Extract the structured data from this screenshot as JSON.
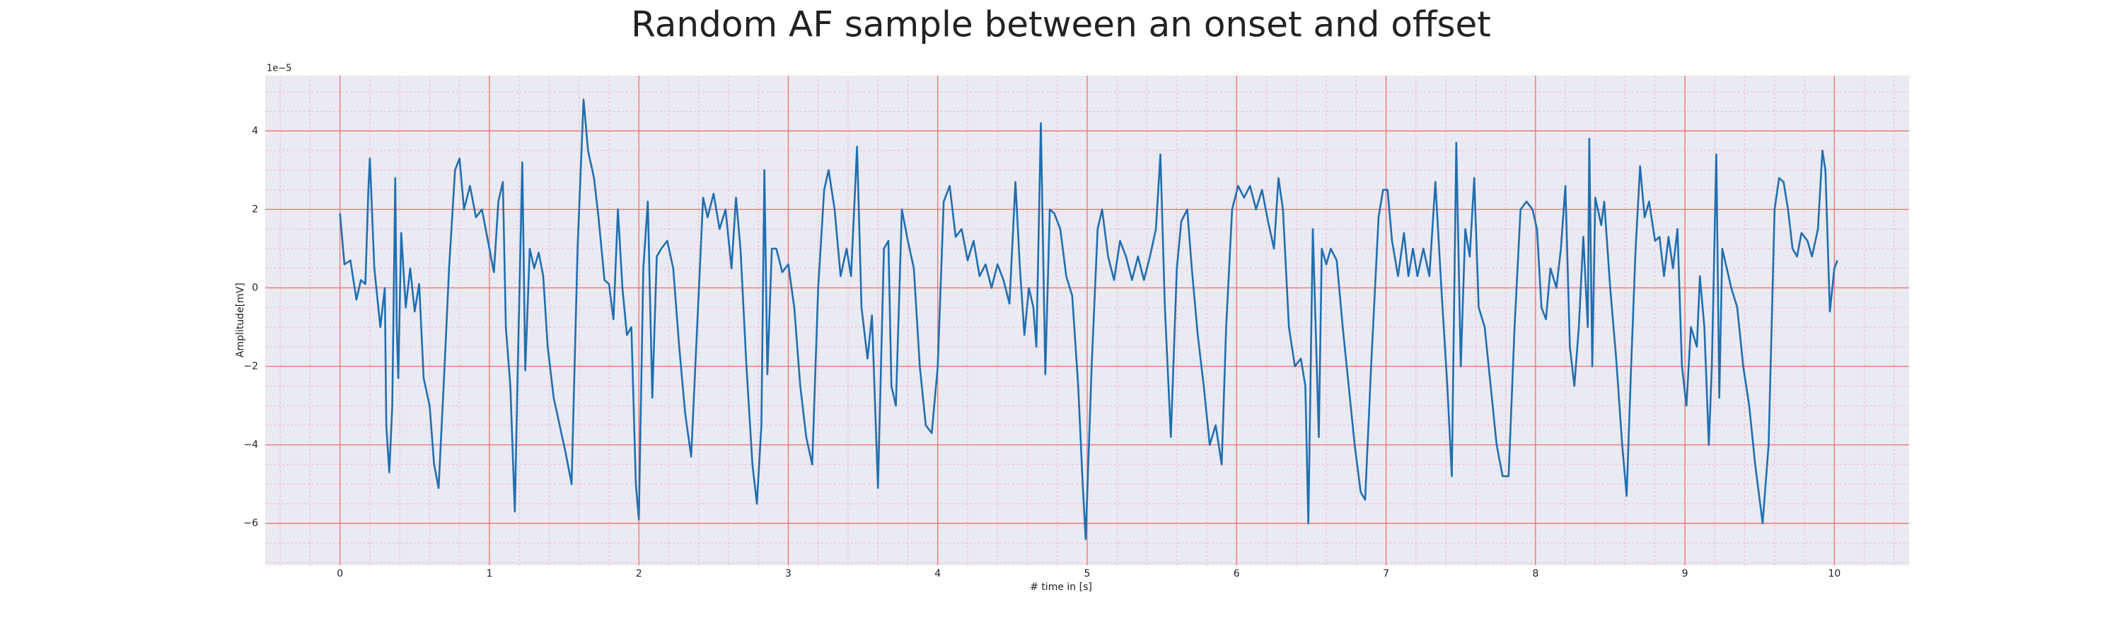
{
  "chart_data": {
    "type": "line",
    "title": "Random AF sample between an onset and offset",
    "xlabel": "# time in [s]",
    "ylabel": "Amplitude[mV]",
    "y_offset_label": "1e−5",
    "color": "#1f6fb0",
    "grid": true,
    "minor_grid": true,
    "xlim": [
      -0.5,
      10.5
    ],
    "xticks": [
      0,
      1,
      2,
      3,
      4,
      5,
      6,
      7,
      8,
      9,
      10
    ],
    "ylim": [
      -7.07,
      5.41
    ],
    "yticks": [
      -6,
      -4,
      -2,
      0,
      2,
      4
    ],
    "x": [
      0.0,
      0.03,
      0.07,
      0.11,
      0.14,
      0.17,
      0.19,
      0.2,
      0.23,
      0.27,
      0.3,
      0.31,
      0.33,
      0.35,
      0.37,
      0.38,
      0.39,
      0.41,
      0.44,
      0.47,
      0.5,
      0.53,
      0.56,
      0.6,
      0.63,
      0.66,
      0.7,
      0.73,
      0.77,
      0.8,
      0.83,
      0.87,
      0.91,
      0.95,
      1.0,
      1.03,
      1.06,
      1.09,
      1.11,
      1.14,
      1.17,
      1.19,
      1.22,
      1.24,
      1.27,
      1.3,
      1.33,
      1.36,
      1.39,
      1.43,
      1.47,
      1.51,
      1.55,
      1.59,
      1.63,
      1.66,
      1.7,
      1.73,
      1.77,
      1.8,
      1.83,
      1.86,
      1.89,
      1.92,
      1.95,
      1.98,
      2.0,
      2.03,
      2.06,
      2.09,
      2.12,
      2.15,
      2.19,
      2.23,
      2.27,
      2.31,
      2.35,
      2.39,
      2.43,
      2.46,
      2.5,
      2.54,
      2.58,
      2.62,
      2.65,
      2.68,
      2.72,
      2.76,
      2.79,
      2.82,
      2.84,
      2.86,
      2.89,
      2.92,
      2.96,
      3.0,
      3.04,
      3.08,
      3.12,
      3.16,
      3.2,
      3.24,
      3.27,
      3.31,
      3.35,
      3.39,
      3.42,
      3.46,
      3.49,
      3.53,
      3.56,
      3.6,
      3.64,
      3.67,
      3.69,
      3.72,
      3.76,
      3.8,
      3.84,
      3.88,
      3.92,
      3.96,
      4.0,
      4.04,
      4.08,
      4.12,
      4.16,
      4.2,
      4.24,
      4.28,
      4.32,
      4.36,
      4.4,
      4.44,
      4.48,
      4.52,
      4.55,
      4.58,
      4.61,
      4.64,
      4.66,
      4.69,
      4.72,
      4.75,
      4.78,
      4.82,
      4.86,
      4.9,
      4.94,
      4.97,
      4.99,
      5.03,
      5.07,
      5.1,
      5.14,
      5.18,
      5.22,
      5.26,
      5.3,
      5.34,
      5.38,
      5.42,
      5.46,
      5.49,
      5.52,
      5.56,
      5.6,
      5.63,
      5.67,
      5.7,
      5.74,
      5.78,
      5.82,
      5.86,
      5.9,
      5.93,
      5.97,
      6.01,
      6.05,
      6.09,
      6.13,
      6.17,
      6.21,
      6.25,
      6.28,
      6.31,
      6.35,
      6.39,
      6.43,
      6.46,
      6.48,
      6.51,
      6.55,
      6.57,
      6.6,
      6.63,
      6.67,
      6.71,
      6.75,
      6.79,
      6.83,
      6.86,
      6.9,
      6.95,
      6.98,
      7.01,
      7.04,
      7.08,
      7.12,
      7.15,
      7.18,
      7.21,
      7.25,
      7.29,
      7.33,
      7.37,
      7.41,
      7.44,
      7.47,
      7.5,
      7.53,
      7.56,
      7.59,
      7.62,
      7.66,
      7.7,
      7.74,
      7.78,
      7.82,
      7.86,
      7.9,
      7.94,
      7.98,
      8.01,
      8.04,
      8.07,
      8.1,
      8.14,
      8.17,
      8.2,
      8.23,
      8.26,
      8.29,
      8.32,
      8.35,
      8.36,
      8.38,
      8.4,
      8.44,
      8.46,
      8.5,
      8.54,
      8.58,
      8.61,
      8.64,
      8.67,
      8.7,
      8.73,
      8.76,
      8.8,
      8.83,
      8.86,
      8.89,
      8.92,
      8.95,
      8.98,
      9.01,
      9.04,
      9.08,
      9.1,
      9.13,
      9.16,
      9.18,
      9.21,
      9.23,
      9.25,
      9.28,
      9.31,
      9.35,
      9.39,
      9.43,
      9.47,
      9.52,
      9.56,
      9.6,
      9.63,
      9.66,
      9.69,
      9.72,
      9.75,
      9.78,
      9.82,
      9.85,
      9.89,
      9.92,
      9.94,
      9.97,
      10.0,
      10.02
    ],
    "values": [
      1.9,
      0.6,
      0.7,
      -0.3,
      0.2,
      0.1,
      2.5,
      3.3,
      0.5,
      -1.0,
      0.0,
      -3.5,
      -4.7,
      -3.0,
      2.8,
      -1.0,
      -2.3,
      1.4,
      -0.5,
      0.5,
      -0.6,
      0.1,
      -2.3,
      -3.0,
      -4.5,
      -5.1,
      -2.0,
      0.5,
      3.0,
      3.3,
      2.0,
      2.6,
      1.8,
      2.0,
      1.0,
      0.4,
      2.2,
      2.7,
      -1.0,
      -2.5,
      -5.7,
      -2.0,
      3.2,
      -2.1,
      1.0,
      0.5,
      0.9,
      0.3,
      -1.5,
      -2.8,
      -3.5,
      -4.2,
      -5.0,
      1.0,
      4.8,
      3.5,
      2.8,
      1.8,
      0.2,
      0.1,
      -0.8,
      2.0,
      0.0,
      -1.2,
      -1.0,
      -5.0,
      -5.9,
      0.5,
      2.2,
      -2.8,
      0.8,
      1.0,
      1.2,
      0.5,
      -1.5,
      -3.2,
      -4.3,
      -1.0,
      2.3,
      1.8,
      2.4,
      1.5,
      2.0,
      0.5,
      2.3,
      1.0,
      -2.0,
      -4.5,
      -5.5,
      -3.5,
      3.0,
      -2.2,
      1.0,
      1.0,
      0.4,
      0.6,
      -0.5,
      -2.5,
      -3.8,
      -4.5,
      0.0,
      2.5,
      3.0,
      2.0,
      0.3,
      1.0,
      0.3,
      3.6,
      -0.5,
      -1.8,
      -0.7,
      -5.1,
      1.0,
      1.2,
      -2.5,
      -3.0,
      2.0,
      1.2,
      0.5,
      -2.0,
      -3.5,
      -3.7,
      -2.0,
      2.2,
      2.6,
      1.3,
      1.5,
      0.7,
      1.2,
      0.3,
      0.6,
      0.0,
      0.6,
      0.2,
      -0.4,
      2.7,
      0.5,
      -1.2,
      0.0,
      -0.5,
      -1.5,
      4.2,
      -2.2,
      2.0,
      1.9,
      1.5,
      0.3,
      -0.2,
      -2.5,
      -5.0,
      -6.4,
      -2.0,
      1.5,
      2.0,
      0.8,
      0.2,
      1.2,
      0.8,
      0.2,
      0.8,
      0.2,
      0.8,
      1.5,
      3.4,
      -0.5,
      -3.8,
      0.5,
      1.7,
      2.0,
      0.5,
      -1.2,
      -2.5,
      -4.0,
      -3.5,
      -4.5,
      -1.0,
      2.0,
      2.6,
      2.3,
      2.6,
      2.0,
      2.5,
      1.7,
      1.0,
      2.8,
      2.0,
      -1.0,
      -2.0,
      -1.8,
      -2.5,
      -6.0,
      1.5,
      -3.8,
      1.0,
      0.6,
      1.0,
      0.7,
      -1.0,
      -2.5,
      -4.0,
      -5.2,
      -5.4,
      -2.0,
      1.8,
      2.5,
      2.5,
      1.2,
      0.3,
      1.4,
      0.3,
      1.0,
      0.3,
      1.0,
      0.3,
      2.7,
      0.0,
      -2.5,
      -4.8,
      3.7,
      -2.0,
      1.5,
      0.8,
      2.8,
      -0.5,
      -1.0,
      -2.5,
      -4.0,
      -4.8,
      -4.8,
      -1.0,
      2.0,
      2.2,
      2.0,
      1.5,
      -0.5,
      -0.8,
      0.5,
      0.0,
      1.0,
      2.6,
      -1.5,
      -2.5,
      -1.0,
      1.3,
      -1.0,
      3.8,
      -2.0,
      2.3,
      1.6,
      2.2,
      0.0,
      -1.8,
      -4.0,
      -5.3,
      -2.0,
      1.0,
      3.1,
      1.8,
      2.2,
      1.2,
      1.3,
      0.3,
      1.3,
      0.5,
      1.5,
      -2.0,
      -3.0,
      -1.0,
      -1.5,
      0.3,
      -1.0,
      -4.0,
      -2.0,
      3.4,
      -2.8,
      1.0,
      0.5,
      0.0,
      -0.5,
      -2.0,
      -3.0,
      -4.5,
      -6.0,
      -4.0,
      2.0,
      2.8,
      2.7,
      2.0,
      1.0,
      0.8,
      1.4,
      1.2,
      0.8,
      1.5,
      3.5,
      3.0,
      -0.6,
      0.5,
      0.7
    ]
  }
}
